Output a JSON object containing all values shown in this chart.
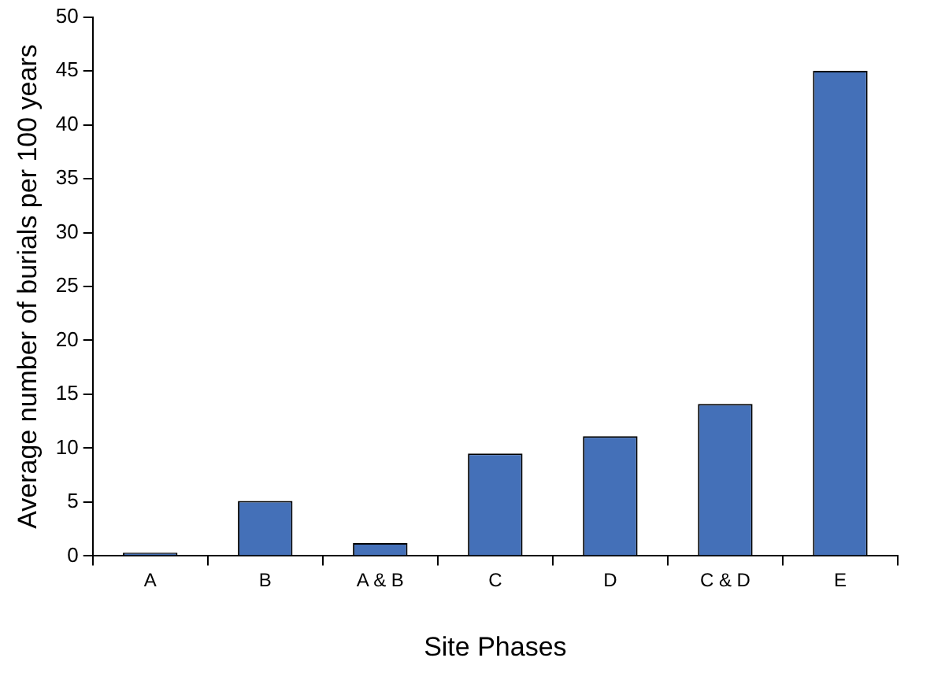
{
  "chart_data": {
    "type": "bar",
    "xlabel": "Site Phases",
    "ylabel": "Average number of burials per 100 years",
    "categories": [
      "A",
      "B",
      "A & B",
      "C",
      "D",
      "C & D",
      "E"
    ],
    "values": [
      0.3,
      5.1,
      1.2,
      9.5,
      11.1,
      14.1,
      45
    ],
    "color": "#4470b8",
    "ylim": [
      0,
      50
    ],
    "yticks": [
      0,
      5,
      10,
      15,
      20,
      25,
      30,
      35,
      40,
      45,
      50
    ],
    "grid": false,
    "legend": false
  }
}
